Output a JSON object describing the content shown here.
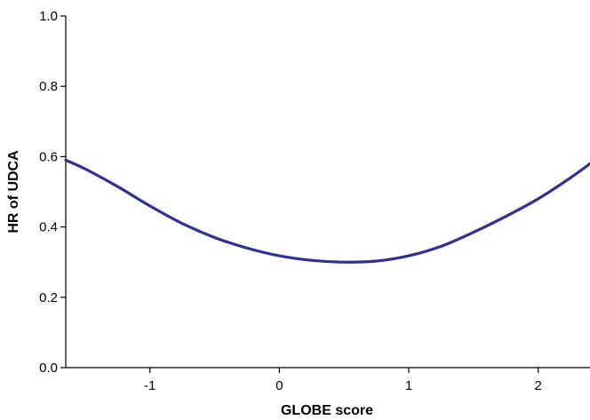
{
  "chart_data": {
    "type": "line",
    "xlabel": "GLOBE score",
    "ylabel": "HR of UDCA",
    "xlim": [
      -1.65,
      2.4
    ],
    "ylim": [
      0,
      1.0
    ],
    "x_ticks": [
      -1,
      0,
      1,
      2
    ],
    "x_tick_labels": [
      "-1",
      "0",
      "1",
      "2"
    ],
    "y_ticks": [
      0,
      0.2,
      0.4,
      0.6,
      0.8,
      1.0
    ],
    "y_tick_labels": [
      "0.0",
      "0.2",
      "0.4",
      "0.6",
      "0.8",
      "1.0"
    ],
    "grid": false,
    "series": [
      {
        "color": "#2e3192",
        "x": [
          -1.65,
          -1.5,
          -1.25,
          -1.0,
          -0.75,
          -0.5,
          -0.25,
          0.0,
          0.25,
          0.5,
          0.75,
          1.0,
          1.25,
          1.5,
          1.75,
          2.0,
          2.25,
          2.4
        ],
        "y": [
          0.59,
          0.565,
          0.515,
          0.46,
          0.41,
          0.37,
          0.34,
          0.318,
          0.305,
          0.3,
          0.303,
          0.318,
          0.345,
          0.385,
          0.43,
          0.48,
          0.54,
          0.58
        ]
      }
    ]
  }
}
